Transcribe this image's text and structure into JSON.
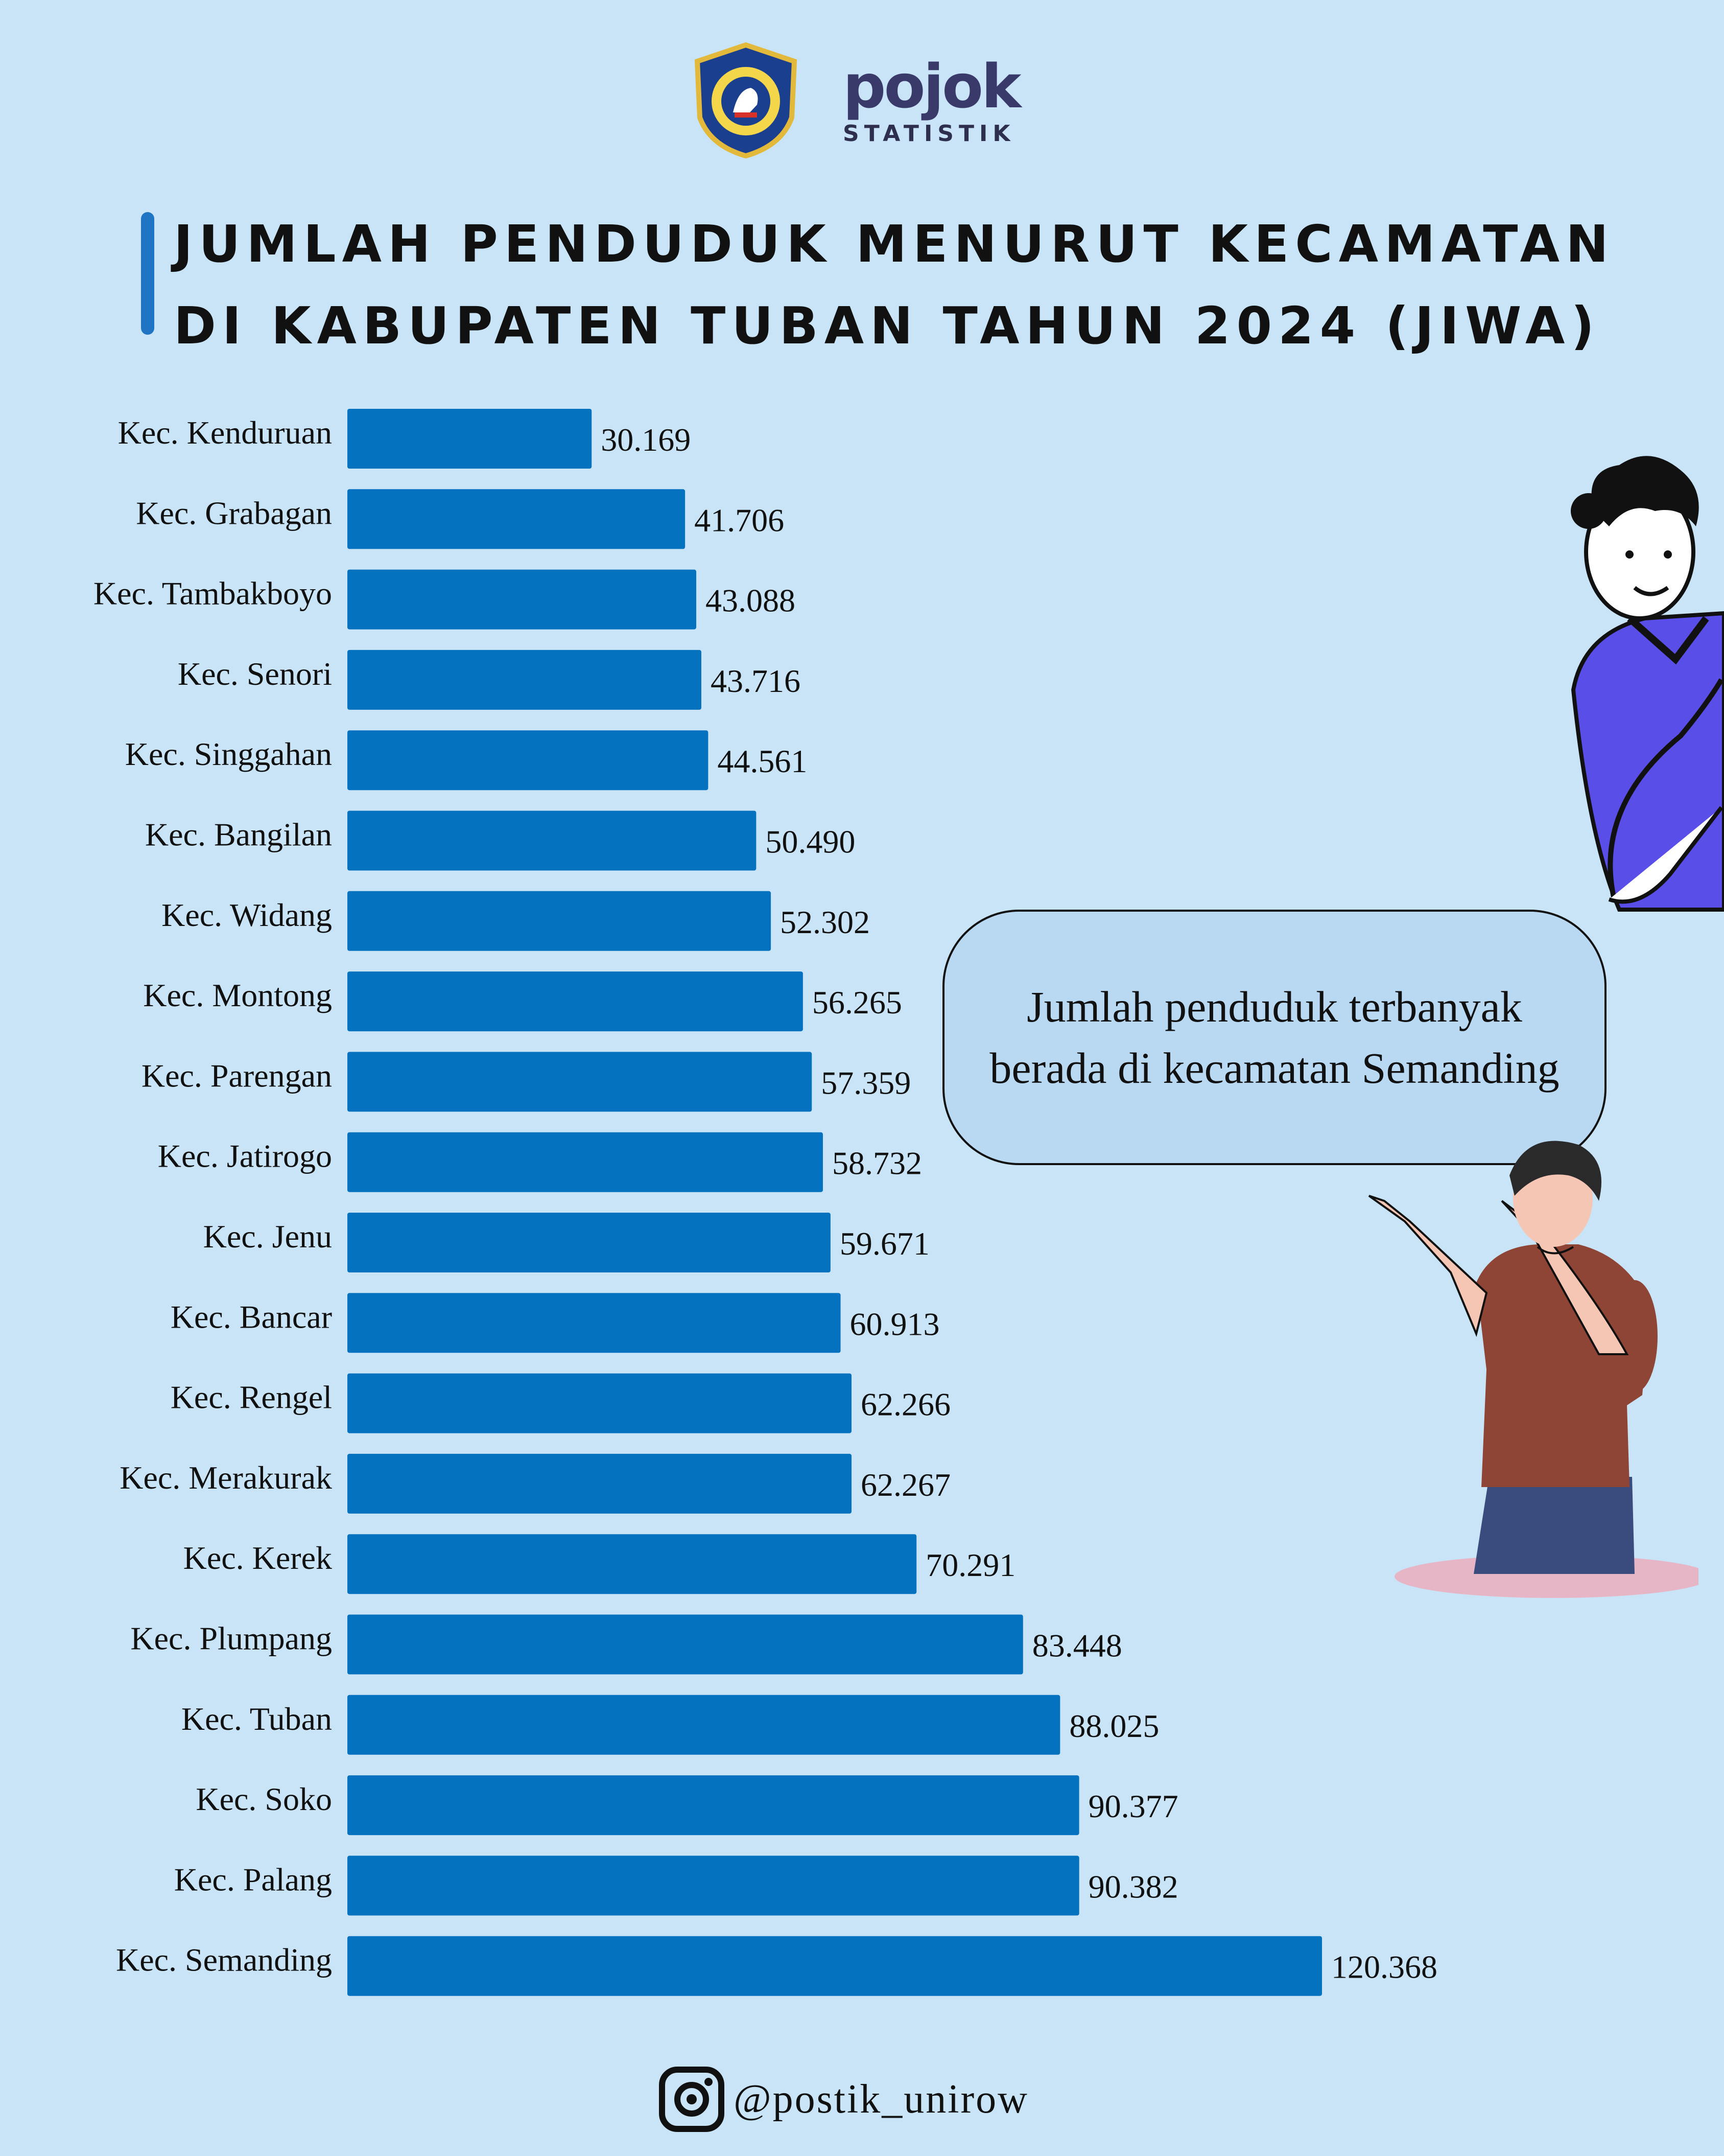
{
  "header": {
    "brand_word": "pojok",
    "brand_sub": "STATISTIK"
  },
  "title_lines": [
    "JUMLAH PENDUDUK MENURUT KECAMATAN",
    "DI KABUPATEN TUBAN TAHUN 2024 (JIWA)"
  ],
  "callout": {
    "line1": "Jumlah penduduk terbanyak",
    "line2": "berada di kecamatan Semanding"
  },
  "footer": {
    "icon": "instagram-icon",
    "handle": "@postik_unirow"
  },
  "colors": {
    "background": "#c8e4f6",
    "bar": "#0572bf",
    "accent": "#1f74c3"
  },
  "chart_data": {
    "type": "bar",
    "orientation": "horizontal",
    "title": "JUMLAH PENDUDUK MENURUT KECAMATAN DI KABUPATEN TUBAN TAHUN 2024 (JIWA)",
    "categories": [
      "Kec. Kenduruan",
      "Kec. Grabagan",
      "Kec. Tambakboyo",
      "Kec. Senori",
      "Kec. Singgahan",
      "Kec. Bangilan",
      "Kec. Widang",
      "Kec. Montong",
      "Kec. Parengan",
      "Kec. Jatirogo",
      "Kec. Jenu",
      "Kec. Bancar",
      "Kec. Rengel",
      "Kec. Merakurak",
      "Kec. Kerek",
      "Kec. Plumpang",
      "Kec. Tuban",
      "Kec. Soko",
      "Kec. Palang",
      "Kec. Semanding"
    ],
    "values": [
      30169,
      41706,
      43088,
      43716,
      44561,
      50490,
      52302,
      56265,
      57359,
      58732,
      59671,
      60913,
      62266,
      62267,
      70291,
      83448,
      88025,
      90377,
      90382,
      120368
    ],
    "value_labels": [
      "30.169",
      "41.706",
      "43.088",
      "43.716",
      "44.561",
      "50.490",
      "52.302",
      "56.265",
      "57.359",
      "58.732",
      "59.671",
      "60.913",
      "62.266",
      "62.267",
      "70.291",
      "83.448",
      "88.025",
      "90.377",
      "90.382",
      "120.368"
    ],
    "xlim": [
      0,
      120368
    ],
    "grid": false,
    "legend": "none"
  }
}
